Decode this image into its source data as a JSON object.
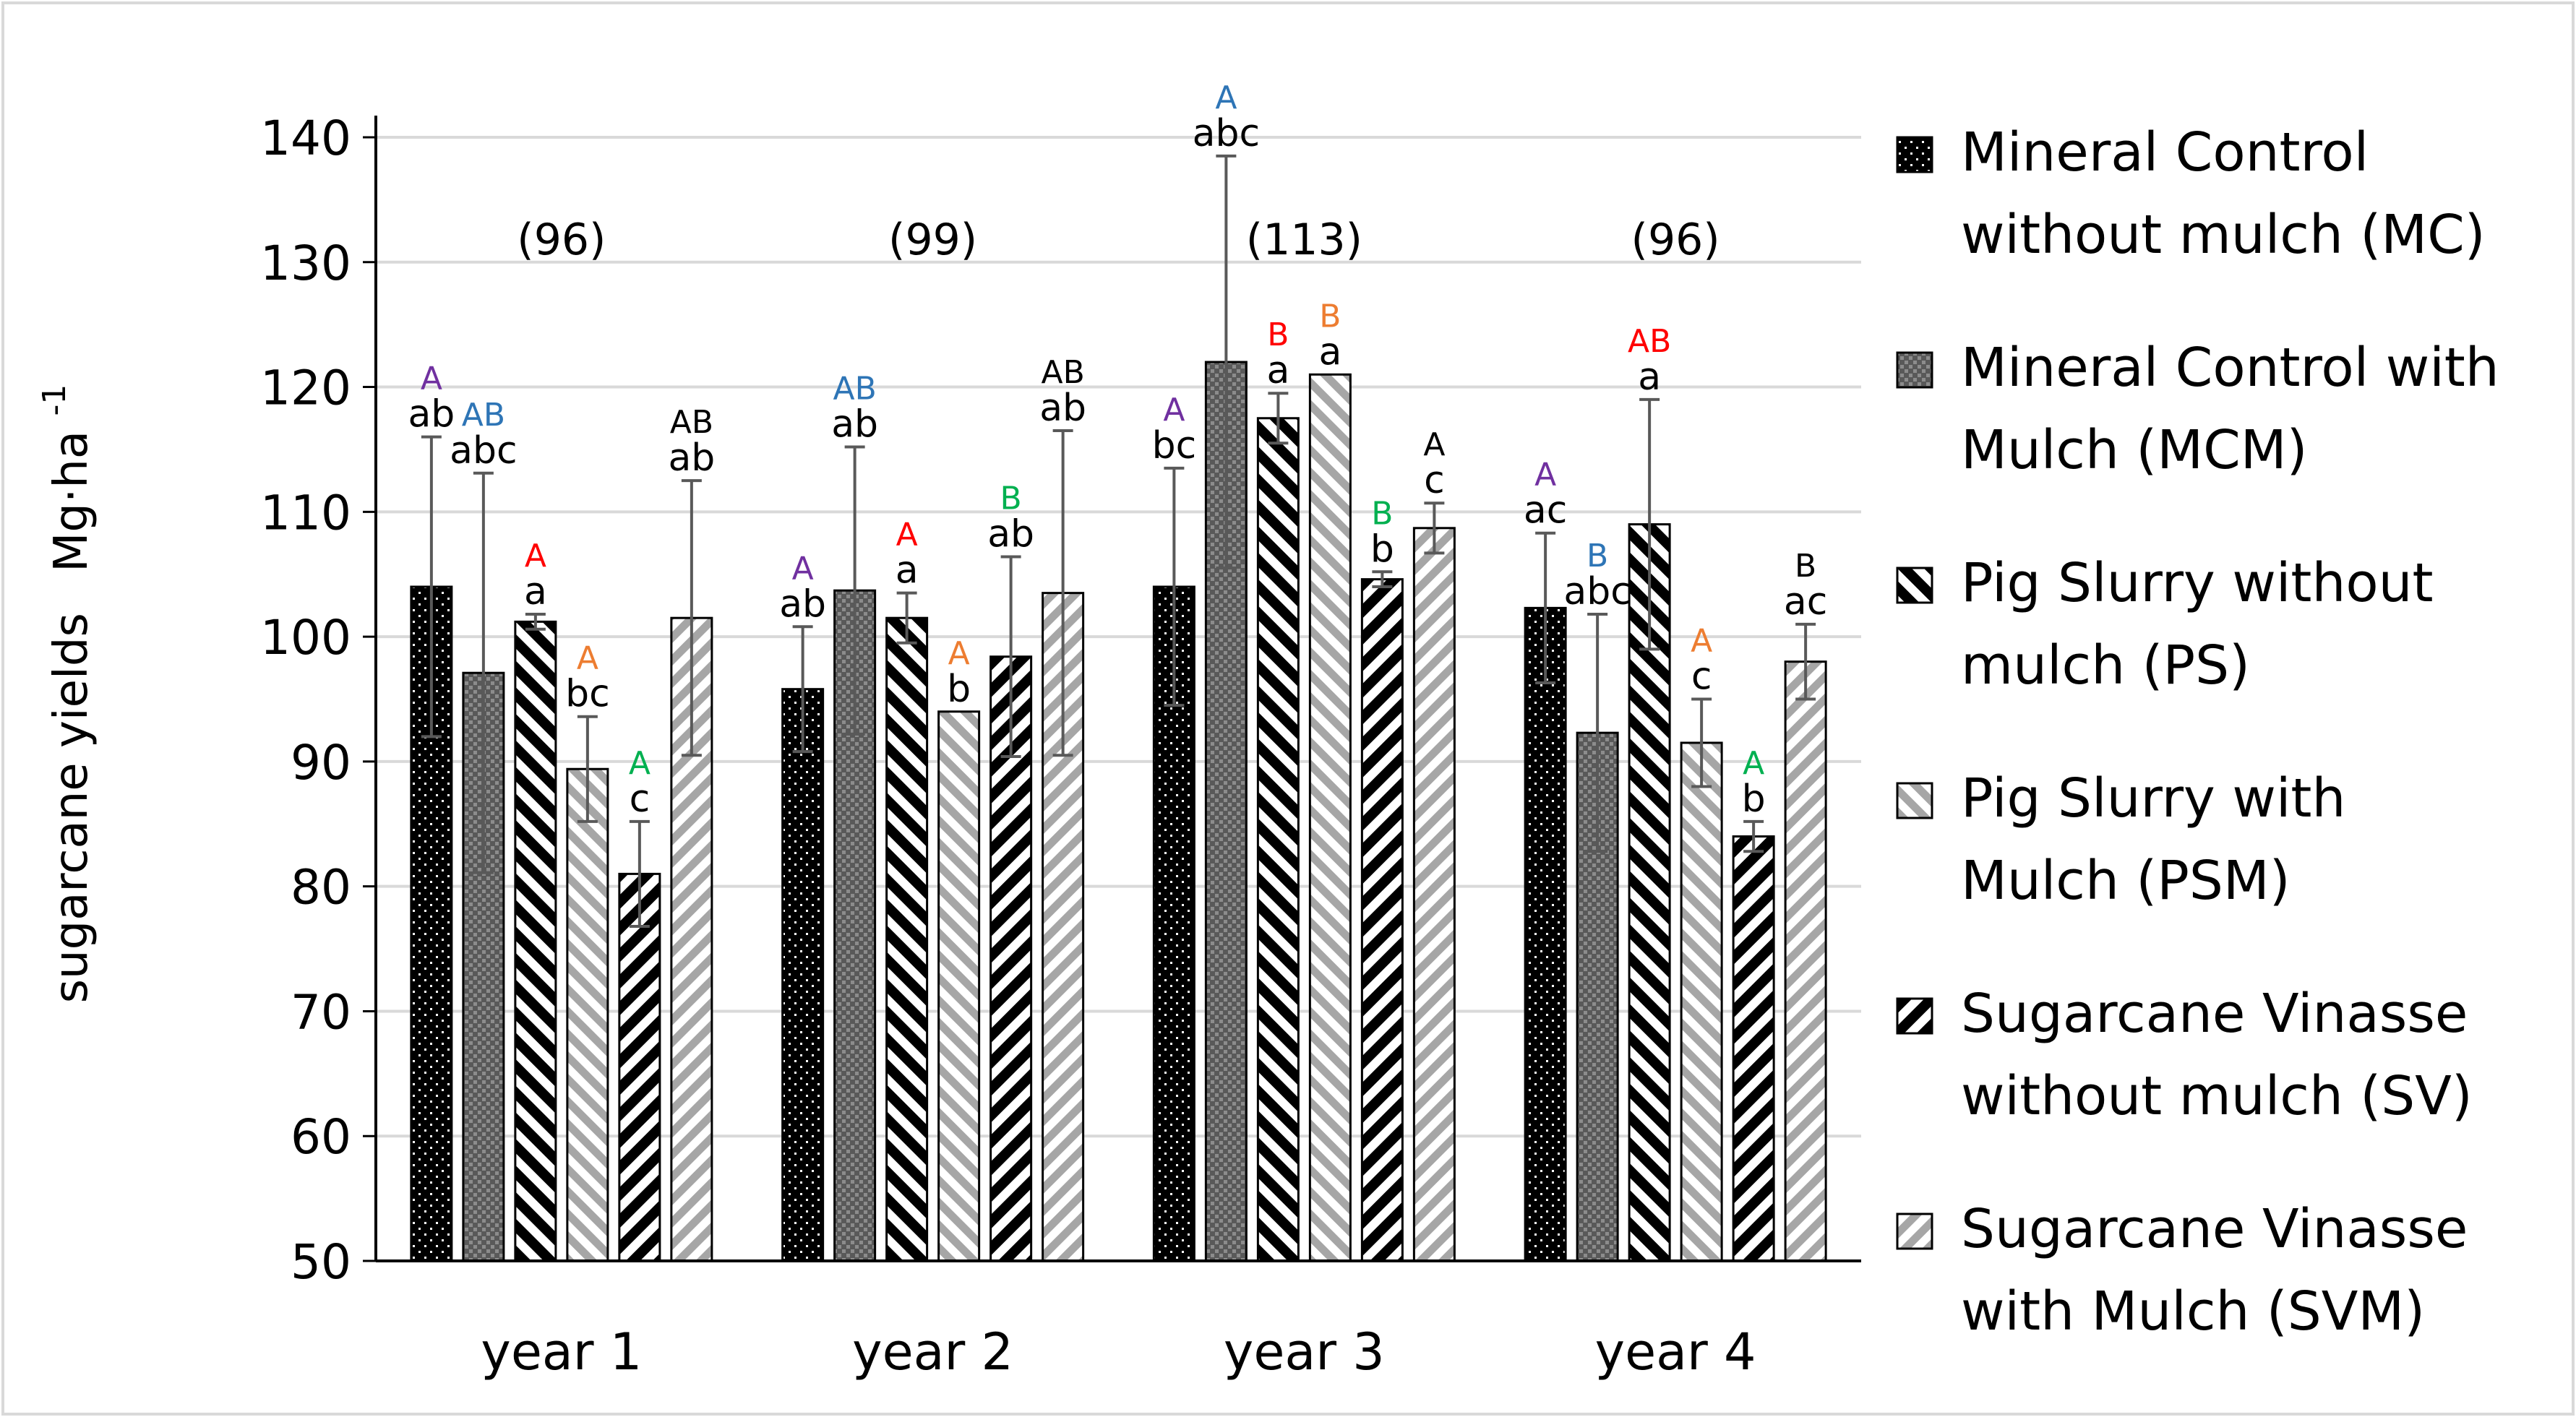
{
  "chart_data": {
    "type": "bar",
    "ylabel": "sugarcane yields",
    "ylabel_unit": "Mg·ha",
    "ylabel_unit_exponent": "-1",
    "ylim": [
      50,
      140
    ],
    "yticks": [
      "50",
      "60",
      "70",
      "80",
      "90",
      "100",
      "110",
      "120",
      "130",
      "140"
    ],
    "grid": true,
    "legend_position": "right",
    "categories": [
      "year 1",
      "year 2",
      "year 3",
      "year 4"
    ],
    "group_annotations": [
      "(96)",
      "(99)",
      "(113)",
      "(96)"
    ],
    "colors": {
      "purple": "#7030A0",
      "blue": "#2E75B6",
      "red": "#FF0000",
      "orange": "#ED7D31",
      "green": "#00B050",
      "black": "#000000",
      "dark_gray": "#7F7F7F",
      "light_gray": "#A6A6A6"
    },
    "series": [
      {
        "name": "Mineral Control without mulch (MC)",
        "legend_lines": [
          "Mineral Control",
          "without mulch (MC)"
        ],
        "pattern": "dots-black",
        "values": [
          104,
          95.8,
          104,
          102.3
        ],
        "err": [
          12,
          5,
          9.5,
          6
        ],
        "lower_labels": [
          "ab",
          "ab",
          "bc",
          "ac"
        ],
        "upper_labels": [
          "A",
          "A",
          "A",
          "A"
        ],
        "upper_colors": [
          "purple",
          "purple",
          "purple",
          "purple"
        ]
      },
      {
        "name": "Mineral Control with Mulch (MCM)",
        "legend_lines": [
          "Mineral Control with",
          "Mulch (MCM)"
        ],
        "pattern": "dots-gray",
        "values": [
          97.1,
          103.7,
          122,
          92.3
        ],
        "err": [
          16,
          11.5,
          16.5,
          9.5
        ],
        "lower_labels": [
          "abc",
          "ab",
          "abc",
          "abc"
        ],
        "upper_labels": [
          "AB",
          "AB",
          "A",
          "B"
        ],
        "upper_colors": [
          "blue",
          "blue",
          "blue",
          "blue"
        ]
      },
      {
        "name": "Pig Slurry without mulch (PS)",
        "legend_lines": [
          "Pig Slurry without",
          "mulch (PS)"
        ],
        "pattern": "stripes-black",
        "values": [
          101.2,
          101.5,
          117.5,
          109
        ],
        "err": [
          0.6,
          2,
          2,
          10
        ],
        "lower_labels": [
          "a",
          "a",
          "a",
          "a"
        ],
        "upper_labels": [
          "A",
          "A",
          "B",
          "AB"
        ],
        "upper_colors": [
          "red",
          "red",
          "red",
          "red"
        ]
      },
      {
        "name": "Pig Slurry with Mulch (PSM)",
        "legend_lines": [
          "Pig Slurry with",
          "Mulch (PSM)"
        ],
        "pattern": "stripes-light",
        "values": [
          89.4,
          94,
          121,
          91.5
        ],
        "err": [
          4.2,
          0,
          0,
          3.5
        ],
        "lower_labels": [
          "bc",
          "b",
          "a",
          "c"
        ],
        "upper_labels": [
          "A",
          "A",
          "B",
          "A"
        ],
        "upper_colors": [
          "orange",
          "orange",
          "orange",
          "orange"
        ]
      },
      {
        "name": "Sugarcane Vinasse without mulch (SV)",
        "legend_lines": [
          "Sugarcane Vinasse",
          "without mulch (SV)"
        ],
        "pattern": "backstripes-black",
        "values": [
          81,
          98.4,
          104.6,
          84
        ],
        "err": [
          4.2,
          8,
          0.6,
          1.2
        ],
        "lower_labels": [
          "c",
          "ab",
          "b",
          "b"
        ],
        "upper_labels": [
          "A",
          "B",
          "B",
          "A"
        ],
        "upper_colors": [
          "green",
          "green",
          "green",
          "green"
        ]
      },
      {
        "name": "Sugarcane Vinasse with Mulch (SVM)",
        "legend_lines": [
          "Sugarcane Vinasse",
          "with Mulch (SVM)"
        ],
        "pattern": "backstripes-light",
        "values": [
          101.5,
          103.5,
          108.7,
          98
        ],
        "err": [
          11,
          13,
          2,
          3
        ],
        "lower_labels": [
          "ab",
          "ab",
          "c",
          "ac"
        ],
        "upper_labels": [
          "AB",
          "AB",
          "A",
          "B"
        ],
        "upper_colors": [
          "black",
          "black",
          "black",
          "black"
        ]
      }
    ]
  }
}
